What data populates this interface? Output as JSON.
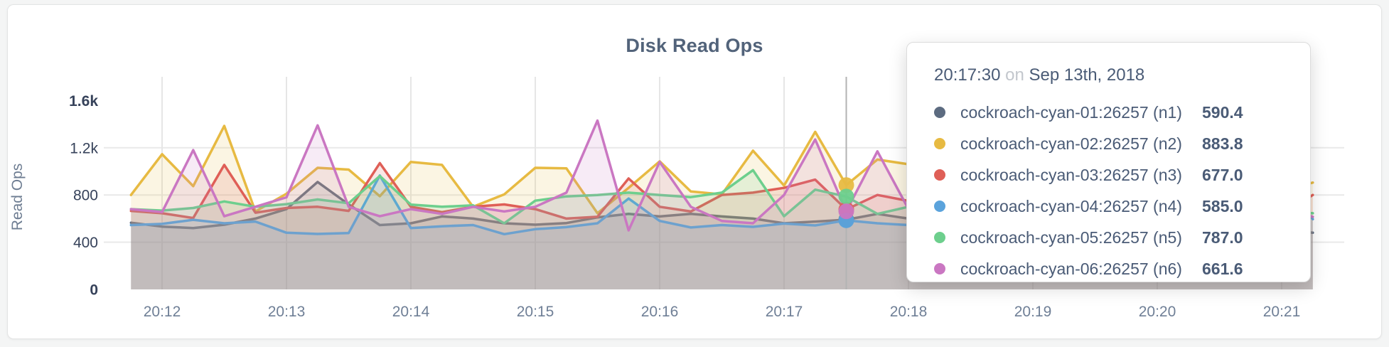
{
  "card": {
    "background": "#ffffff",
    "page_background": "#f4f5f5"
  },
  "chart_data": {
    "type": "area",
    "title": "Disk Read Ops",
    "ylabel": "Read Ops",
    "xlabel": "",
    "grid": true,
    "ylim": [
      0,
      1600
    ],
    "y_ticks": [
      {
        "label": "1.6k",
        "value": 1600,
        "gridline": false
      },
      {
        "label": "1.2k",
        "value": 1200,
        "gridline": true
      },
      {
        "label": "800",
        "value": 800,
        "gridline": true
      },
      {
        "label": "400",
        "value": 400,
        "gridline": true
      },
      {
        "label": "0",
        "value": 0,
        "gridline": false
      }
    ],
    "x_ticks": [
      "20:12",
      "20:13",
      "20:14",
      "20:15",
      "20:16",
      "20:17",
      "20:18",
      "20:19",
      "20:20",
      "20:21"
    ],
    "x_start_time": "20:11:45",
    "interval_seconds": 15,
    "highlight": {
      "time": "20:17:30",
      "index": 23
    },
    "series": [
      {
        "name": "cockroach-cyan-01:26257 (n1)",
        "color": "#5c6b80",
        "values": [
          565,
          532,
          520,
          548,
          600,
          680,
          910,
          720,
          545,
          560,
          618,
          600,
          560,
          548,
          562,
          610,
          640,
          618,
          640,
          618,
          600,
          560,
          575,
          590.4,
          640,
          600,
          562,
          580,
          600,
          620,
          580,
          560,
          600,
          580,
          560,
          540,
          520,
          500,
          480
        ]
      },
      {
        "name": "cockroach-cyan-02:26257 (n2)",
        "color": "#e7ba42",
        "values": [
          800,
          1145,
          875,
          1385,
          660,
          810,
          1030,
          1015,
          790,
          1080,
          1055,
          700,
          805,
          1030,
          1025,
          645,
          860,
          1085,
          830,
          805,
          1175,
          880,
          1335,
          883.8,
          1100,
          1060,
          980,
          900,
          1050,
          880,
          820,
          860,
          1000,
          870,
          840,
          900,
          820,
          840,
          905
        ]
      },
      {
        "name": "cockroach-cyan-03:26257 (n3)",
        "color": "#df5f57",
        "values": [
          665,
          645,
          605,
          1055,
          650,
          690,
          700,
          665,
          1070,
          700,
          655,
          700,
          720,
          680,
          600,
          615,
          940,
          700,
          660,
          800,
          820,
          860,
          930,
          677.0,
          800,
          750,
          700,
          680,
          660,
          700,
          680,
          660,
          700,
          680,
          660,
          640,
          620,
          630,
          800
        ]
      },
      {
        "name": "cockroach-cyan-04:26257 (n4)",
        "color": "#5ba3dc",
        "values": [
          545,
          555,
          590,
          560,
          575,
          480,
          470,
          478,
          965,
          520,
          535,
          545,
          468,
          510,
          528,
          560,
          770,
          580,
          525,
          545,
          530,
          558,
          542,
          585.0,
          560,
          545,
          560,
          550,
          540,
          560,
          550,
          540,
          560,
          550,
          540,
          560,
          550,
          880,
          595
        ]
      },
      {
        "name": "cockroach-cyan-05:26257 (n5)",
        "color": "#6dcf8d",
        "values": [
          680,
          668,
          690,
          745,
          700,
          722,
          762,
          730,
          960,
          718,
          700,
          712,
          560,
          752,
          788,
          800,
          820,
          800,
          782,
          820,
          1010,
          620,
          845,
          787.0,
          640,
          700,
          720,
          700,
          680,
          700,
          720,
          700,
          680,
          700,
          720,
          700,
          680,
          660,
          645
        ]
      },
      {
        "name": "cockroach-cyan-06:26257 (n6)",
        "color": "#ca77c2",
        "values": [
          680,
          655,
          1180,
          620,
          700,
          780,
          1390,
          700,
          620,
          680,
          640,
          700,
          660,
          700,
          820,
          1430,
          500,
          1080,
          700,
          580,
          560,
          800,
          1270,
          661.6,
          1170,
          680,
          640,
          660,
          680,
          700,
          660,
          640,
          680,
          660,
          700,
          680,
          650,
          700,
          615
        ]
      }
    ]
  },
  "tooltip": {
    "time": "20:17:30",
    "conjunction": "on",
    "date": "Sep 13th, 2018",
    "rows": [
      {
        "name": "cockroach-cyan-01:26257 (n1)",
        "value": "590.4"
      },
      {
        "name": "cockroach-cyan-02:26257 (n2)",
        "value": "883.8"
      },
      {
        "name": "cockroach-cyan-03:26257 (n3)",
        "value": "677.0"
      },
      {
        "name": "cockroach-cyan-04:26257 (n4)",
        "value": "585.0"
      },
      {
        "name": "cockroach-cyan-05:26257 (n5)",
        "value": "787.0"
      },
      {
        "name": "cockroach-cyan-06:26257 (n6)",
        "value": "661.6"
      }
    ]
  }
}
